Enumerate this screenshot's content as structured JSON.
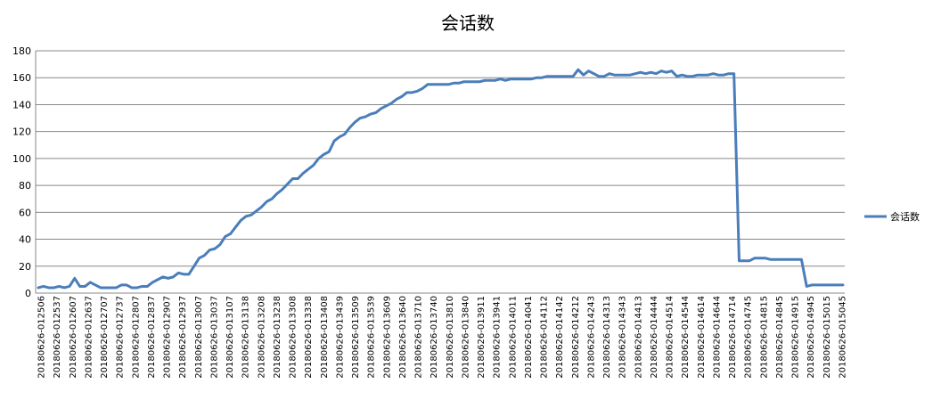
{
  "chart_data": {
    "type": "line",
    "title": "会话数",
    "xlabel": "",
    "ylabel": "",
    "ylim": [
      0,
      180
    ],
    "y_ticks": [
      0,
      20,
      40,
      60,
      80,
      100,
      120,
      140,
      160,
      180
    ],
    "grid": true,
    "legend_position": "right",
    "line_color": "#4a7ebb",
    "x_tick_labels": [
      "20180626-012506",
      "20180626-012537",
      "20180626-012607",
      "20180626-012637",
      "20180626-012707",
      "20180626-012737",
      "20180626-012807",
      "20180626-012837",
      "20180626-012907",
      "20180626-012937",
      "20180626-013007",
      "20180626-013037",
      "20180626-013107",
      "20180626-013138",
      "20180626-013208",
      "20180626-013238",
      "20180626-013308",
      "20180626-013338",
      "20180626-013408",
      "20180626-013439",
      "20180626-013509",
      "20180626-013539",
      "20180626-013609",
      "20180626-013640",
      "20180626-013710",
      "20180626-013740",
      "20180626-013810",
      "20180626-013840",
      "20180626-013911",
      "20180626-013941",
      "20180626-014011",
      "20180626-014041",
      "20180626-014112",
      "20180626-014142",
      "20180626-014212",
      "20180626-014243",
      "20180626-014313",
      "20180626-014343",
      "20180626-014413",
      "20180626-014444",
      "20180626-014514",
      "20180626-014544",
      "20180626-014614",
      "20180626-014644",
      "20180626-014714",
      "20180626-014745",
      "20180626-014815",
      "20180626-014845",
      "20180626-014915",
      "20180626-014945",
      "20180626-015015",
      "20180626-015045"
    ],
    "series": [
      {
        "name": "会话数",
        "values": [
          4,
          5,
          4,
          4,
          5,
          4,
          5,
          11,
          5,
          5,
          8,
          6,
          4,
          4,
          4,
          4,
          6,
          6,
          4,
          4,
          5,
          5,
          8,
          10,
          12,
          11,
          12,
          15,
          14,
          14,
          20,
          26,
          28,
          32,
          33,
          36,
          42,
          44,
          49,
          54,
          57,
          58,
          61,
          64,
          68,
          70,
          74,
          77,
          81,
          85,
          85,
          89,
          92,
          95,
          100,
          103,
          105,
          113,
          116,
          118,
          123,
          127,
          130,
          131,
          133,
          134,
          137,
          139,
          141,
          144,
          146,
          149,
          149,
          150,
          152,
          155,
          155,
          155,
          155,
          155,
          156,
          156,
          157,
          157,
          157,
          157,
          158,
          158,
          158,
          159,
          158,
          159,
          159,
          159,
          159,
          159,
          160,
          160,
          161,
          161,
          161,
          161,
          161,
          161,
          166,
          162,
          165,
          163,
          161,
          161,
          163,
          162,
          162,
          162,
          162,
          163,
          164,
          163,
          164,
          163,
          165,
          164,
          165,
          161,
          162,
          161,
          161,
          162,
          162,
          162,
          163,
          162,
          162,
          163,
          163,
          24,
          24,
          24,
          26,
          26,
          26,
          25,
          25,
          25,
          25,
          25,
          25,
          25,
          5,
          6,
          6,
          6,
          6,
          6,
          6,
          6
        ]
      }
    ]
  }
}
